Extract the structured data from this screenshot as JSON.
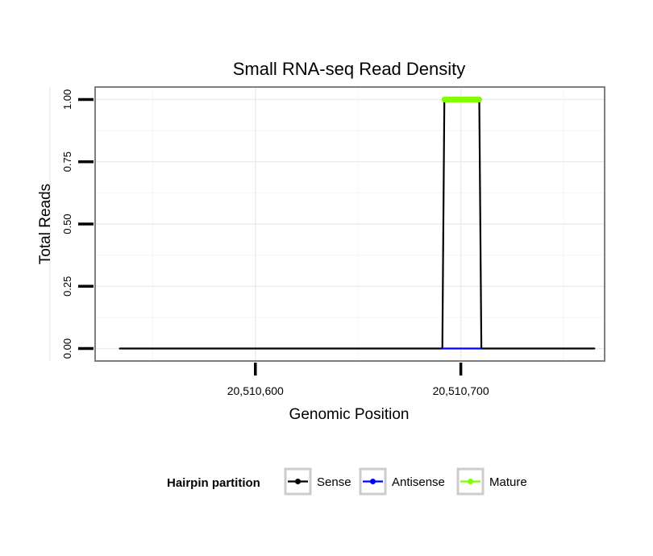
{
  "chart_data": {
    "type": "line",
    "title": "Small RNA-seq Read Density",
    "xlabel": "Genomic Position",
    "ylabel": "Total Reads",
    "xlim": [
      20510522,
      20510770
    ],
    "ylim": [
      -0.05,
      1.05
    ],
    "x_ticks": [
      20510600,
      20510700
    ],
    "x_tick_labels": [
      "20,510,600",
      "20,510,700"
    ],
    "y_ticks": [
      0,
      0.25,
      0.5,
      0.75,
      1.0
    ],
    "y_tick_labels": [
      "0.00",
      "0.25",
      "0.50",
      "0.75",
      "1.00"
    ],
    "grid": true,
    "legend": {
      "title": "Hairpin partition",
      "position": "bottom",
      "entries": [
        "Sense",
        "Antisense",
        "Mature"
      ]
    },
    "series": [
      {
        "name": "Sense",
        "color": "#000000",
        "x": [
          20510534,
          20510691,
          20510692,
          20510709,
          20510710,
          20510765
        ],
        "y": [
          0,
          0,
          1,
          1,
          0,
          0
        ]
      },
      {
        "name": "Antisense",
        "color": "#0000ff",
        "x": [
          20510691,
          20510710
        ],
        "y": [
          0,
          0
        ]
      },
      {
        "name": "Mature",
        "color": "#7fff00",
        "x": [
          20510692,
          20510709
        ],
        "y": [
          1,
          1
        ]
      }
    ]
  }
}
